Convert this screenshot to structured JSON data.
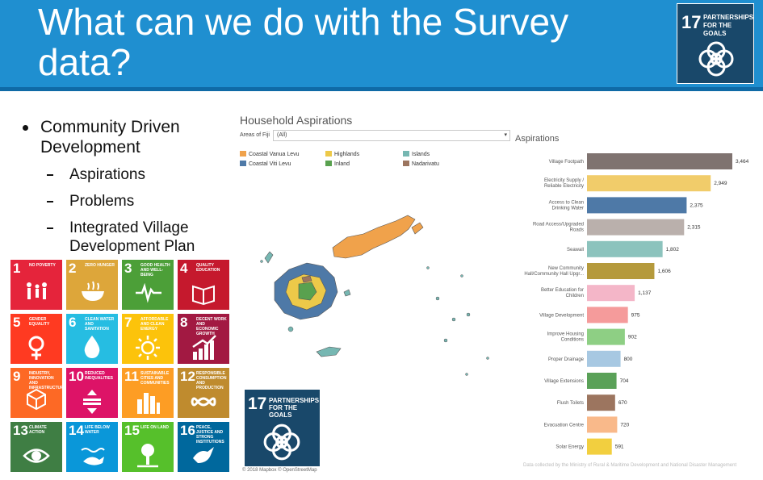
{
  "slide": {
    "title": "What can we do with the Survey data?",
    "bullet": "Community Driven Development",
    "sub_bullets": [
      "Aspirations",
      "Problems",
      "Integrated Village Development Plan"
    ]
  },
  "logo": {
    "number": "17",
    "label": "PARTNERSHIPS FOR THE GOALS"
  },
  "sdg_tiles": [
    {
      "n": "1",
      "label": "NO POVERTY",
      "color": "#e5243b",
      "icon": "family-icon"
    },
    {
      "n": "2",
      "label": "ZERO HUNGER",
      "color": "#dda63a",
      "icon": "bowl-icon"
    },
    {
      "n": "3",
      "label": "GOOD HEALTH AND WELL-BEING",
      "color": "#4c9f38",
      "icon": "heartbeat-icon"
    },
    {
      "n": "4",
      "label": "QUALITY EDUCATION",
      "color": "#c5192d",
      "icon": "book-icon"
    },
    {
      "n": "5",
      "label": "GENDER EQUALITY",
      "color": "#ff3a21",
      "icon": "gender-icon"
    },
    {
      "n": "6",
      "label": "CLEAN WATER AND SANITATION",
      "color": "#26bde2",
      "icon": "water-drop-icon"
    },
    {
      "n": "7",
      "label": "AFFORDABLE AND CLEAN ENERGY",
      "color": "#fcc30b",
      "icon": "sun-icon"
    },
    {
      "n": "8",
      "label": "DECENT WORK AND ECONOMIC GROWTH",
      "color": "#a21942",
      "icon": "growth-chart-icon"
    },
    {
      "n": "9",
      "label": "INDUSTRY, INNOVATION AND INFRASTRUCTURE",
      "color": "#fd6925",
      "icon": "cubes-icon"
    },
    {
      "n": "10",
      "label": "REDUCED INEQUALITIES",
      "color": "#dd1367",
      "icon": "equality-icon"
    },
    {
      "n": "11",
      "label": "SUSTAINABLE CITIES AND COMMUNITIES",
      "color": "#fd9d24",
      "icon": "city-icon"
    },
    {
      "n": "12",
      "label": "RESPONSIBLE CONSUMPTION AND PRODUCTION",
      "color": "#bf8b2e",
      "icon": "infinity-icon"
    },
    {
      "n": "13",
      "label": "CLIMATE ACTION",
      "color": "#3f7e44",
      "icon": "eye-globe-icon"
    },
    {
      "n": "14",
      "label": "LIFE BELOW WATER",
      "color": "#0a97d9",
      "icon": "fish-icon"
    },
    {
      "n": "15",
      "label": "LIFE ON LAND",
      "color": "#56c02b",
      "icon": "tree-icon"
    },
    {
      "n": "16",
      "label": "PEACE, JUSTICE AND STRONG INSTITUTIONS",
      "color": "#00689d",
      "icon": "dove-icon"
    }
  ],
  "dashboard": {
    "title": "Household Aspirations",
    "filter_label": "Areas of Fiji",
    "filter_value": "(All)",
    "legend": [
      {
        "label": "Coastal Vanua Levu",
        "color": "#f0a24b"
      },
      {
        "label": "Coastal Viti Levu",
        "color": "#4e79a7"
      },
      {
        "label": "Highlands",
        "color": "#edc949"
      },
      {
        "label": "Inland",
        "color": "#59a14f"
      },
      {
        "label": "Islands",
        "color": "#76b7b2"
      },
      {
        "label": "Nadarivatu",
        "color": "#9c755f"
      }
    ],
    "credit": "© 2018 Mapbox © OpenStreetMap",
    "footnote": "Data collected by the Ministry of Rural & Maritime Development and National Disaster Management"
  },
  "chart_data": {
    "type": "bar",
    "orientation": "horizontal",
    "title": "Aspirations",
    "categories": [
      "Village Footpath",
      "Electricity Supply / Reliable Electricity",
      "Access to Clean Drinking Water",
      "Road Access/Upgraded Roads",
      "Seawall",
      "New Community Hall/Community Hall Upgr...",
      "Better Education for Children",
      "Village Development",
      "Improve Housing Conditions",
      "Proper Drainage",
      "Village Extensions",
      "Flush Toilets",
      "Evacuation Centre",
      "Solar Energy"
    ],
    "values": [
      3464,
      2949,
      2375,
      2315,
      1802,
      1606,
      1137,
      975,
      902,
      800,
      704,
      670,
      720,
      591
    ],
    "value_labels": [
      "3,464",
      "2,949",
      "2,375",
      "2,315",
      "1,802",
      "1,606",
      "1,137",
      "975",
      "902",
      "800",
      "704",
      "670",
      "720",
      "591"
    ],
    "colors": [
      "#7f7370",
      "#f1cc6a",
      "#4e79a7",
      "#bab0ac",
      "#8cc3bd",
      "#b59a3c",
      "#f4b6c8",
      "#f59b9b",
      "#8ecf84",
      "#a7c8e2",
      "#5aa158",
      "#9c755f",
      "#f9b98a",
      "#f2cf3f"
    ]
  }
}
